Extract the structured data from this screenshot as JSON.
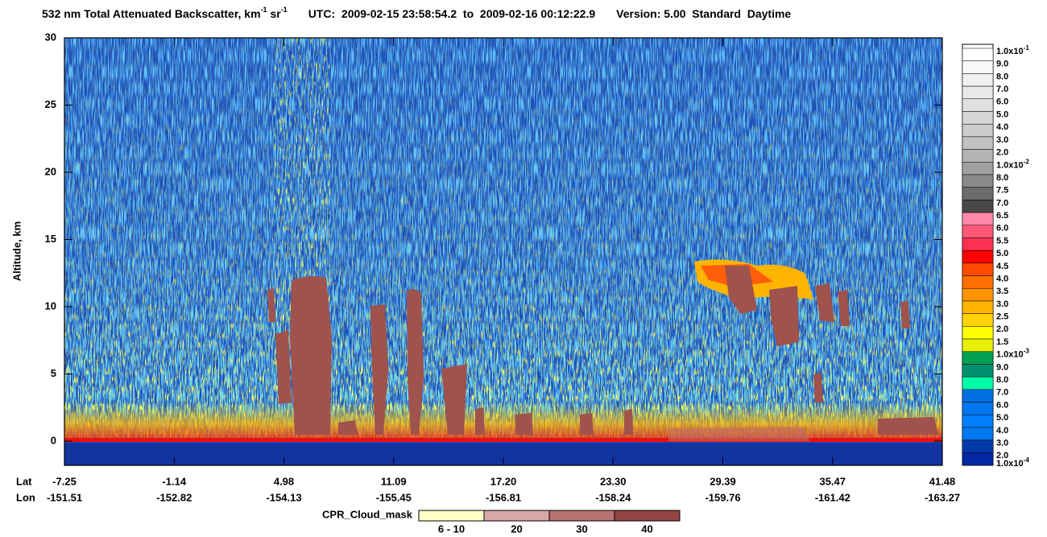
{
  "chart_data": {
    "type": "curtain",
    "title": {
      "main": "532 nm Total Attenuated Backscatter, km",
      "exp1": "-1",
      "unit2": " sr",
      "exp2": "-1",
      "utc": "UTC:  2009-02-15 23:58:54.2  to  2009-02-16 00:12:22.9",
      "version": "Version: 5.00  Standard  Daytime"
    },
    "y_label": "Altitude, km",
    "ylim": [
      -1.8,
      30
    ],
    "yticks": [
      0,
      5,
      10,
      15,
      20,
      25,
      30
    ],
    "x_row_labels": [
      "Lat",
      "Lon"
    ],
    "x_ticks": [
      {
        "lat": "-7.25",
        "lon": "-151.51"
      },
      {
        "lat": "-1.14",
        "lon": "-152.82"
      },
      {
        "lat": "4.98",
        "lon": "-154.13"
      },
      {
        "lat": "11.09",
        "lon": "-155.45"
      },
      {
        "lat": "17.20",
        "lon": "-156.81"
      },
      {
        "lat": "23.30",
        "lon": "-158.24"
      },
      {
        "lat": "29.39",
        "lon": "-159.76"
      },
      {
        "lat": "35.47",
        "lon": "-161.42"
      },
      {
        "lat": "41.48",
        "lon": "-163.27"
      }
    ],
    "colorbar": {
      "labels": [
        {
          "text": "1.0x10",
          "exp": "-1"
        },
        "9.0",
        "8.0",
        "7.0",
        "6.0",
        "5.0",
        "4.0",
        "3.0",
        "2.0",
        {
          "text": "1.0x10",
          "exp": "-2"
        },
        "8.0",
        "7.5",
        "7.0",
        "6.5",
        "6.0",
        "5.5",
        "5.0",
        "4.5",
        "4.0",
        "3.5",
        "3.0",
        "2.5",
        "2.0",
        "1.5",
        {
          "text": "1.0x10",
          "exp": "-3"
        },
        "9.0",
        "8.0",
        "7.0",
        "6.0",
        "5.0",
        "4.0",
        "3.0",
        "2.0",
        {
          "text": "1.0x10",
          "exp": "-4"
        }
      ],
      "colors": [
        "#ffffff",
        "#f8f8f8",
        "#f0f0f0",
        "#e8e8e8",
        "#e0e0e0",
        "#d6d6d6",
        "#cccccc",
        "#c2c2c2",
        "#b4b4b4",
        "#a0a0a0",
        "#8a8a8a",
        "#6c6c6c",
        "#484848",
        "#ff88a8",
        "#ff5878",
        "#ff3050",
        "#ff0000",
        "#ff4a00",
        "#ff7000",
        "#ff9400",
        "#ffb400",
        "#ffd400",
        "#ffff00",
        "#e8f000",
        "#00a050",
        "#009070",
        "#00ffa8",
        "#0070e0",
        "#0078f0",
        "#0080ff",
        "#0078f0",
        "#003aa8",
        "#0028a0"
      ]
    },
    "cloud_mask": {
      "label": "CPR_Cloud_mask",
      "classes": [
        "6 - 10",
        "20",
        "30",
        "40"
      ],
      "colors": [
        "#ffffc8",
        "#d8a8a8",
        "#b87272",
        "#944444"
      ]
    }
  }
}
